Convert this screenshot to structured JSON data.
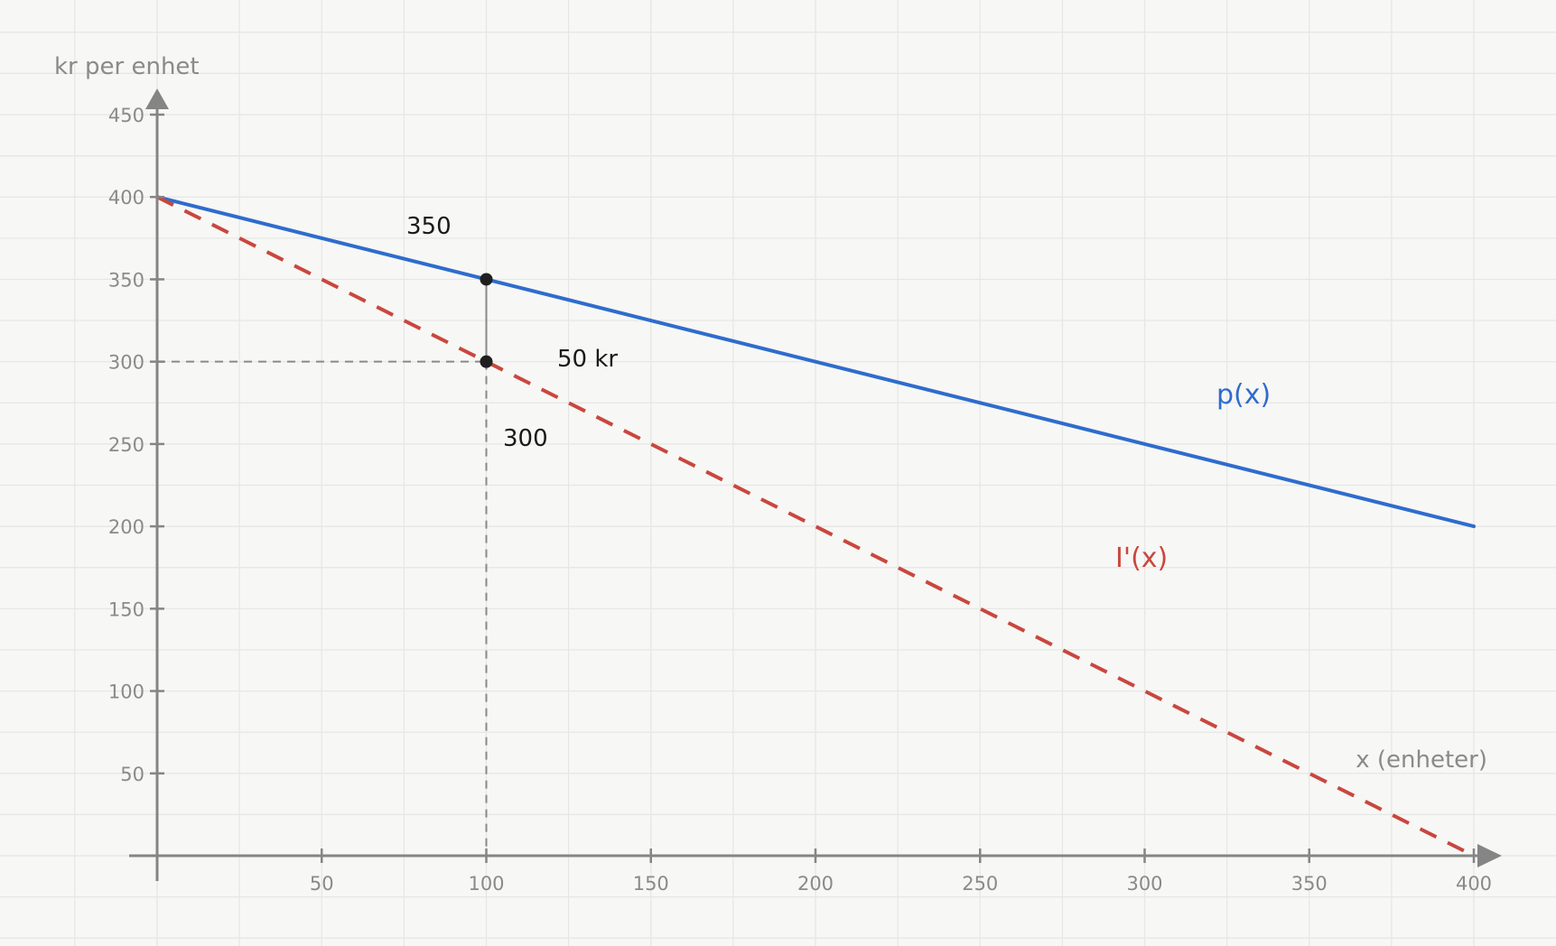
{
  "chart_data": {
    "type": "line",
    "title": "",
    "xlabel": "x (enheter)",
    "ylabel": "kr per enhet",
    "xlim": [
      0,
      400
    ],
    "ylim": [
      0,
      450
    ],
    "grid": true,
    "x_ticks": [
      50,
      100,
      150,
      200,
      250,
      300,
      350,
      400
    ],
    "y_ticks": [
      50,
      100,
      150,
      200,
      250,
      300,
      350,
      400,
      450
    ],
    "series": [
      {
        "name": "p(x)",
        "style": "solid",
        "color": "#2f6ccc",
        "x": [
          0,
          400
        ],
        "y": [
          400,
          200
        ]
      },
      {
        "name": "I'(x)",
        "style": "dashed",
        "color": "#c9473d",
        "x": [
          0,
          400
        ],
        "y": [
          400,
          0
        ]
      }
    ],
    "highlight": {
      "x": 100,
      "p_value": 350,
      "marginal_value": 300,
      "difference_label": "50 kr",
      "p_value_label": "350",
      "marginal_value_label": "300"
    },
    "colors": {
      "axis": "#858585",
      "grid": "#e6e6e4",
      "background": "#f7f7f6",
      "guide": "#8a8a8a",
      "point": "#1f1f1f"
    }
  }
}
